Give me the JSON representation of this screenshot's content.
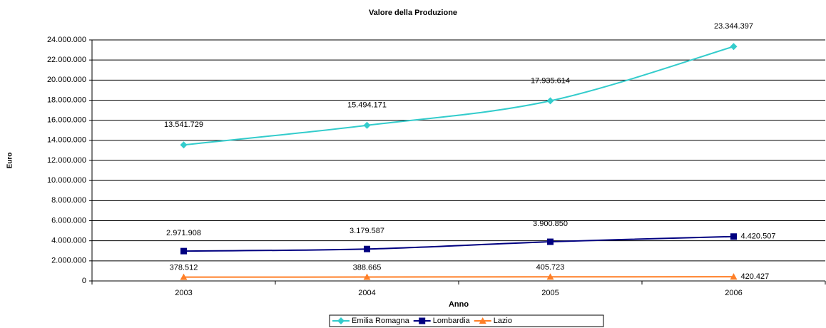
{
  "chart_data": {
    "type": "line",
    "title": "Valore della Produzione",
    "x_label": "Anno",
    "y_label": "Euro",
    "categories": [
      "2003",
      "2004",
      "2005",
      "2006"
    ],
    "series": [
      {
        "name": "Emilia Romagna",
        "color": "#33cccc",
        "marker": "diamond",
        "values": [
          13541729,
          15494171,
          17935614,
          23344397
        ],
        "value_labels": [
          "13.541.729",
          "15.494.171",
          "17.935.614",
          "23.344.397"
        ]
      },
      {
        "name": "Lombardia",
        "color": "#000080",
        "marker": "square",
        "values": [
          2971908,
          3179587,
          3900850,
          4420507
        ],
        "value_labels": [
          "2.971.908",
          "3.179.587",
          "3.900.850",
          "4.420.507"
        ]
      },
      {
        "name": "Lazio",
        "color": "#ff7f27",
        "marker": "triangle",
        "values": [
          378512,
          388665,
          405723,
          420427
        ],
        "value_labels": [
          "378.512",
          "388.665",
          "405.723",
          "420.427"
        ]
      }
    ],
    "ylim": [
      0,
      24000000
    ],
    "yticks": [
      0,
      {
        "value": 2000000,
        "label": "2.000.000"
      },
      {
        "value": 4000000,
        "label": "4.000.000"
      },
      {
        "value": 6000000,
        "label": "6.000.000"
      },
      {
        "value": 8000000,
        "label": "8.000.000"
      },
      {
        "value": 10000000,
        "label": "10.000.000"
      },
      {
        "value": 12000000,
        "label": "12.000.000"
      },
      {
        "value": 14000000,
        "label": "14.000.000"
      },
      {
        "value": 16000000,
        "label": "16.000.000"
      },
      {
        "value": 18000000,
        "label": "18.000.000"
      },
      {
        "value": 20000000,
        "label": "20.000.000"
      },
      {
        "value": 22000000,
        "label": "22.000.000"
      },
      {
        "value": 24000000,
        "label": "24.000.000"
      }
    ],
    "grid": true,
    "legend": "bottom"
  }
}
